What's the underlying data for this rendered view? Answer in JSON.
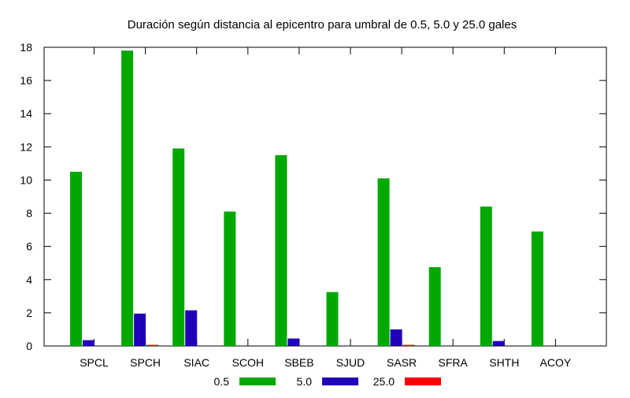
{
  "chart_data": {
    "type": "bar",
    "title": "Duración según distancia al epicentro para umbral de 0.5, 5.0 y 25.0 gales",
    "xlabel": "",
    "ylabel": "",
    "ylim": [
      0,
      18
    ],
    "yticks": [
      0,
      2,
      4,
      6,
      8,
      10,
      12,
      14,
      16,
      18
    ],
    "grid": false,
    "legend_position": "bottom",
    "categories": [
      "SPCL",
      "SPCH",
      "SIAC",
      "SCOH",
      "SBEB",
      "SJUD",
      "SASR",
      "SFRA",
      "SHTH",
      "ACOY"
    ],
    "series": [
      {
        "name": "0.5",
        "color": "#00a800",
        "values": [
          10.5,
          17.8,
          11.9,
          8.1,
          11.5,
          3.25,
          10.1,
          4.75,
          8.4,
          6.9
        ]
      },
      {
        "name": "5.0",
        "color": "#2000b8",
        "values": [
          0.35,
          1.95,
          2.15,
          0,
          0.45,
          0,
          1.0,
          0,
          0.3,
          0
        ]
      },
      {
        "name": "25.0",
        "color": "#ff0000",
        "values": [
          0,
          0.07,
          0,
          0,
          0,
          0,
          0.07,
          0,
          0,
          0
        ]
      }
    ]
  }
}
